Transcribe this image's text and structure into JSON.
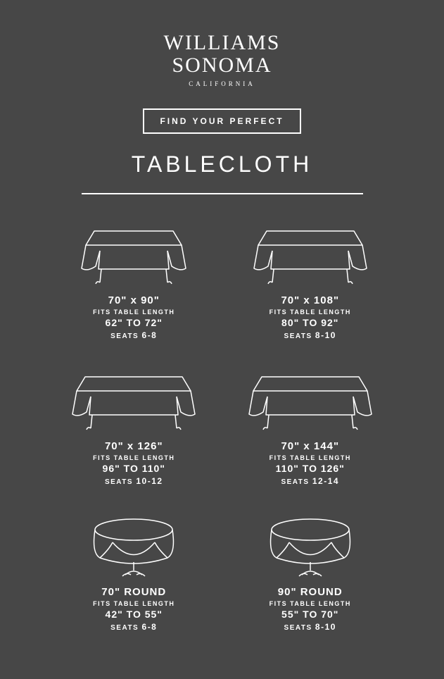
{
  "brand": {
    "line1": "WILLIAMS",
    "line2": "SONOMA",
    "sub": "CALIFORNIA"
  },
  "header": {
    "boxed": "FIND YOUR PERFECT",
    "title": "TABLECLOTH"
  },
  "fits_label": "FITS TABLE LENGTH",
  "seats_label": "SEATS",
  "colors": {
    "bg": "#474747",
    "fg": "#ffffff",
    "stroke": "#ffffff"
  },
  "items": [
    {
      "shape": "rect-short",
      "size": "70\" x 90\"",
      "range": "62\" TO 72\"",
      "seats": "6-8"
    },
    {
      "shape": "rect-med",
      "size": "70\" x 108\"",
      "range": "80\" TO 92\"",
      "seats": "8-10"
    },
    {
      "shape": "rect-long",
      "size": "70\" x 126\"",
      "range": "96\" TO 110\"",
      "seats": "10-12"
    },
    {
      "shape": "rect-long",
      "size": "70\" x 144\"",
      "range": "110\" TO 126\"",
      "seats": "12-14"
    },
    {
      "shape": "round",
      "size": "70\" ROUND",
      "range": "42\" TO 55\"",
      "seats": "6-8"
    },
    {
      "shape": "round",
      "size": "90\" ROUND",
      "range": "55\" TO 70\"",
      "seats": "8-10"
    }
  ]
}
